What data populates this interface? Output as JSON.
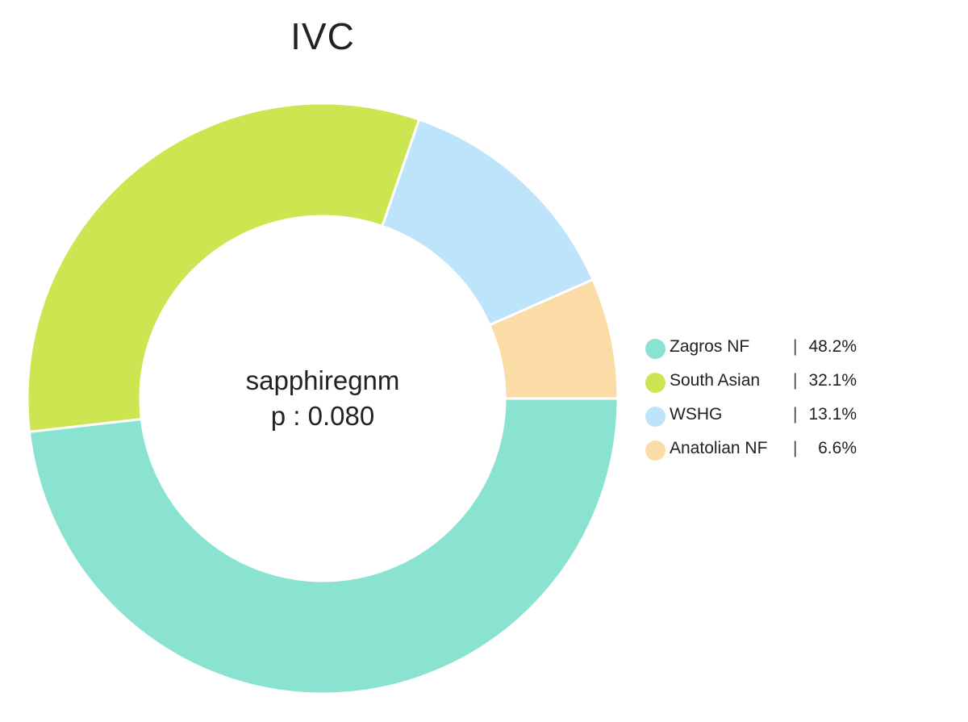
{
  "chart_data": {
    "type": "pie",
    "title": "IVC",
    "center_label": {
      "line1": "sapphiregnm",
      "line2": "p : 0.080"
    },
    "categories": [
      "Zagros NF",
      "South Asian",
      "WSHG",
      "Anatolian NF"
    ],
    "values": [
      48.2,
      32.1,
      13.1,
      6.6
    ],
    "value_labels": [
      "48.2%",
      "32.1%",
      "13.1%",
      "6.6%"
    ],
    "colors": [
      "#89e3d0",
      "#cbe650",
      "#bde4fb",
      "#fcdca6"
    ],
    "donut": true,
    "legend_position": "right"
  }
}
